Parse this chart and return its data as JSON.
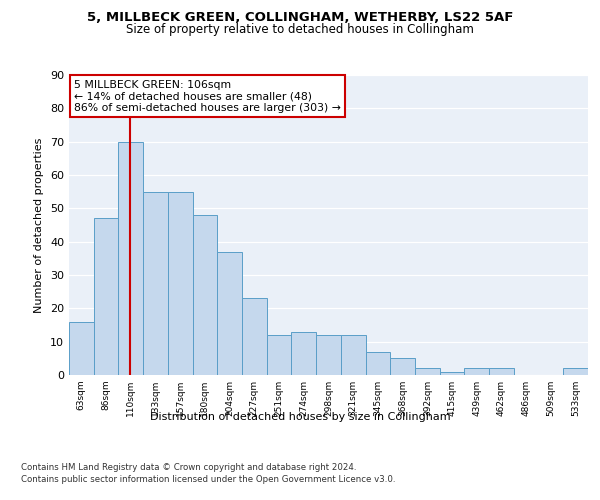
{
  "title1": "5, MILLBECK GREEN, COLLINGHAM, WETHERBY, LS22 5AF",
  "title2": "Size of property relative to detached houses in Collingham",
  "xlabel": "Distribution of detached houses by size in Collingham",
  "ylabel": "Number of detached properties",
  "categories": [
    "63sqm",
    "86sqm",
    "110sqm",
    "133sqm",
    "157sqm",
    "180sqm",
    "204sqm",
    "227sqm",
    "251sqm",
    "274sqm",
    "298sqm",
    "321sqm",
    "345sqm",
    "368sqm",
    "392sqm",
    "415sqm",
    "439sqm",
    "462sqm",
    "486sqm",
    "509sqm",
    "533sqm"
  ],
  "values": [
    16,
    47,
    70,
    55,
    55,
    48,
    37,
    23,
    12,
    13,
    12,
    12,
    7,
    5,
    2,
    1,
    2,
    2,
    0,
    0,
    2
  ],
  "bar_color": "#c5d8ed",
  "bar_edge_color": "#5a9ec8",
  "property_line_x": 1.97,
  "property_line_color": "#cc0000",
  "annotation_text": "5 MILLBECK GREEN: 106sqm\n← 14% of detached houses are smaller (48)\n86% of semi-detached houses are larger (303) →",
  "annotation_box_color": "#cc0000",
  "ylim": [
    0,
    90
  ],
  "yticks": [
    0,
    10,
    20,
    30,
    40,
    50,
    60,
    70,
    80,
    90
  ],
  "background_color": "#ffffff",
  "plot_bg_color": "#eaf0f8",
  "grid_color": "#ffffff",
  "footer_line1": "Contains HM Land Registry data © Crown copyright and database right 2024.",
  "footer_line2": "Contains public sector information licensed under the Open Government Licence v3.0."
}
